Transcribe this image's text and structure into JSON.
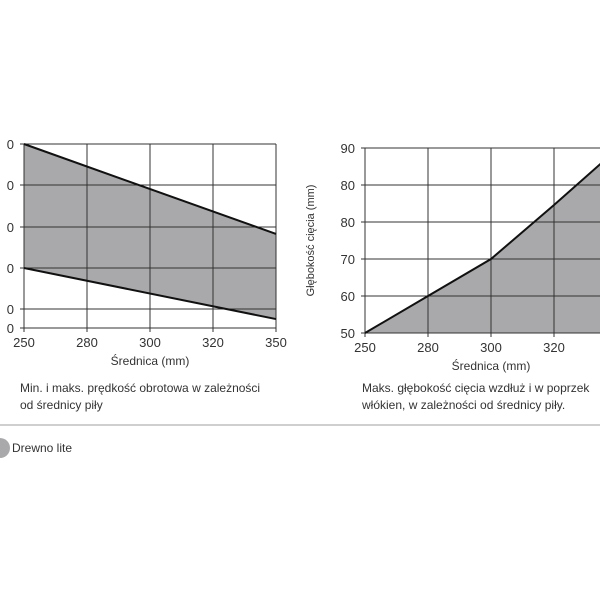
{
  "chart_data": [
    {
      "type": "area",
      "description_caption": "Min. i maks. prędkość obrotowa w zależności od średnicy piły",
      "caption_lines": [
        "Min. i maks. prędkość obrotowa w zależności",
        "od średnicy piły"
      ],
      "xlabel": "Średnica (mm)",
      "ylabel": "",
      "x_ticks": [
        250,
        280,
        300,
        320,
        350
      ],
      "y_tick_labels_visible": [
        "0",
        "0",
        "0",
        "0",
        "0",
        "0"
      ],
      "y_grid_levels": [
        0,
        1,
        2,
        3,
        4,
        5
      ],
      "series": [
        {
          "role": "max",
          "x": [
            250,
            350
          ],
          "y_grid_level": [
            5,
            2.83
          ]
        },
        {
          "role": "min",
          "x": [
            250,
            350
          ],
          "y_grid_level": [
            2,
            0.47
          ]
        }
      ],
      "fill": "between",
      "grid": true,
      "fill_color": "#a9a9ab"
    },
    {
      "type": "area",
      "caption_lines": [
        "Maks. głębokość cięcia wzdłuż i w poprzek",
        "włókien, w zależności od średnicy piły."
      ],
      "xlabel": "Średnica (mm)",
      "ylabel": "Głębokość cięcia (mm)",
      "x_ticks": [
        250,
        280,
        300,
        320
      ],
      "y_tick_labels": [
        "50",
        "60",
        "70",
        "80",
        "80",
        "90"
      ],
      "series": [
        {
          "x": [
            250,
            280,
            300,
            320,
            335
          ],
          "y_grid_level": [
            0,
            1,
            2,
            3.46,
            4.59
          ]
        }
      ],
      "fill": "below",
      "grid": true,
      "fill_color": "#a9a9ab"
    }
  ],
  "legend": {
    "label": "Drewno lite",
    "color": "#a9a9ab"
  }
}
